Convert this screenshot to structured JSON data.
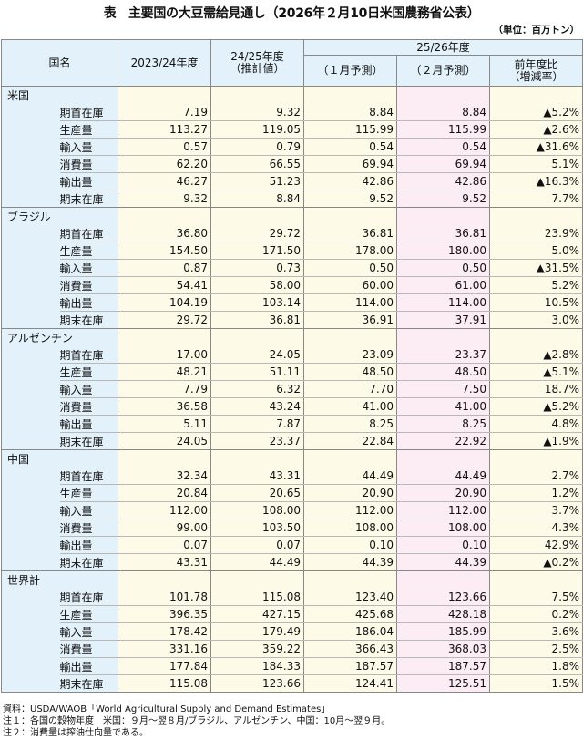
{
  "title": "表　主要国の大豆需給見通し（2026年２月10日米国農務省公表）",
  "unit": "（単位：百万トン）",
  "header": {
    "country": "国名",
    "col1": "2023/24年度",
    "col2": "24/25年度",
    "col2_sub": "（推計値）",
    "group": "25/26年度",
    "col3": "（１月予測）",
    "col4": "（２月予測）",
    "col5": "前年度比",
    "col5_sub": "（増減率）"
  },
  "colors": {
    "header_bg": "#e3f1fa",
    "cell_bg": "#fdfbe8",
    "feb_col_bg": "#fcecf3"
  },
  "sections": [
    {
      "name": "米国",
      "rows": [
        {
          "item": "期首在庫",
          "v": [
            "7.19",
            "9.32",
            "8.84",
            "8.84",
            "▲5.2%"
          ]
        },
        {
          "item": "生産量",
          "v": [
            "113.27",
            "119.05",
            "115.99",
            "115.99",
            "▲2.6%"
          ]
        },
        {
          "item": "輸入量",
          "v": [
            "0.57",
            "0.79",
            "0.54",
            "0.54",
            "▲31.6%"
          ]
        },
        {
          "item": "消費量",
          "v": [
            "62.20",
            "66.55",
            "69.94",
            "69.94",
            "5.1%"
          ]
        },
        {
          "item": "輸出量",
          "v": [
            "46.27",
            "51.23",
            "42.86",
            "42.86",
            "▲16.3%"
          ]
        },
        {
          "item": "期末在庫",
          "v": [
            "9.32",
            "8.84",
            "9.52",
            "9.52",
            "7.7%"
          ]
        }
      ]
    },
    {
      "name": "ブラジル",
      "rows": [
        {
          "item": "期首在庫",
          "v": [
            "36.80",
            "29.72",
            "36.81",
            "36.81",
            "23.9%"
          ]
        },
        {
          "item": "生産量",
          "v": [
            "154.50",
            "171.50",
            "178.00",
            "180.00",
            "5.0%"
          ]
        },
        {
          "item": "輸入量",
          "v": [
            "0.87",
            "0.73",
            "0.50",
            "0.50",
            "▲31.5%"
          ]
        },
        {
          "item": "消費量",
          "v": [
            "54.41",
            "58.00",
            "60.00",
            "61.00",
            "5.2%"
          ]
        },
        {
          "item": "輸出量",
          "v": [
            "104.19",
            "103.14",
            "114.00",
            "114.00",
            "10.5%"
          ]
        },
        {
          "item": "期末在庫",
          "v": [
            "29.72",
            "36.81",
            "36.91",
            "37.91",
            "3.0%"
          ]
        }
      ]
    },
    {
      "name": "アルゼンチン",
      "rows": [
        {
          "item": "期首在庫",
          "v": [
            "17.00",
            "24.05",
            "23.09",
            "23.37",
            "▲2.8%"
          ]
        },
        {
          "item": "生産量",
          "v": [
            "48.21",
            "51.11",
            "48.50",
            "48.50",
            "▲5.1%"
          ]
        },
        {
          "item": "輸入量",
          "v": [
            "7.79",
            "6.32",
            "7.70",
            "7.50",
            "18.7%"
          ]
        },
        {
          "item": "消費量",
          "v": [
            "36.58",
            "43.24",
            "41.00",
            "41.00",
            "▲5.2%"
          ]
        },
        {
          "item": "輸出量",
          "v": [
            "5.11",
            "7.87",
            "8.25",
            "8.25",
            "4.8%"
          ]
        },
        {
          "item": "期末在庫",
          "v": [
            "24.05",
            "23.37",
            "22.84",
            "22.92",
            "▲1.9%"
          ]
        }
      ]
    },
    {
      "name": "中国",
      "rows": [
        {
          "item": "期首在庫",
          "v": [
            "32.34",
            "43.31",
            "44.49",
            "44.49",
            "2.7%"
          ]
        },
        {
          "item": "生産量",
          "v": [
            "20.84",
            "20.65",
            "20.90",
            "20.90",
            "1.2%"
          ]
        },
        {
          "item": "輸入量",
          "v": [
            "112.00",
            "108.00",
            "112.00",
            "112.00",
            "3.7%"
          ]
        },
        {
          "item": "消費量",
          "v": [
            "99.00",
            "103.50",
            "108.00",
            "108.00",
            "4.3%"
          ]
        },
        {
          "item": "輸出量",
          "v": [
            "0.07",
            "0.07",
            "0.10",
            "0.10",
            "42.9%"
          ]
        },
        {
          "item": "期末在庫",
          "v": [
            "43.31",
            "44.49",
            "44.39",
            "44.39",
            "▲0.2%"
          ]
        }
      ]
    },
    {
      "name": "世界計",
      "rows": [
        {
          "item": "期首在庫",
          "v": [
            "101.78",
            "115.08",
            "123.40",
            "123.66",
            "7.5%"
          ]
        },
        {
          "item": "生産量",
          "v": [
            "396.35",
            "427.15",
            "425.68",
            "428.18",
            "0.2%"
          ]
        },
        {
          "item": "輸入量",
          "v": [
            "178.42",
            "179.49",
            "186.04",
            "185.99",
            "3.6%"
          ]
        },
        {
          "item": "消費量",
          "v": [
            "331.16",
            "359.22",
            "366.43",
            "368.03",
            "2.5%"
          ]
        },
        {
          "item": "輸出量",
          "v": [
            "177.84",
            "184.33",
            "187.57",
            "187.57",
            "1.8%"
          ]
        },
        {
          "item": "期末在庫",
          "v": [
            "115.08",
            "123.66",
            "124.41",
            "125.51",
            "1.5%"
          ]
        }
      ]
    }
  ],
  "notes": [
    "資料：USDA/WAOB「World Agricultural Supply and Demand Estimates」",
    "注１：各国の穀物年度　米国：９月～翌８月/ブラジル、アルゼンチン、中国：10月～翌９月。",
    "注２：消費量は搾油仕向量である。"
  ]
}
